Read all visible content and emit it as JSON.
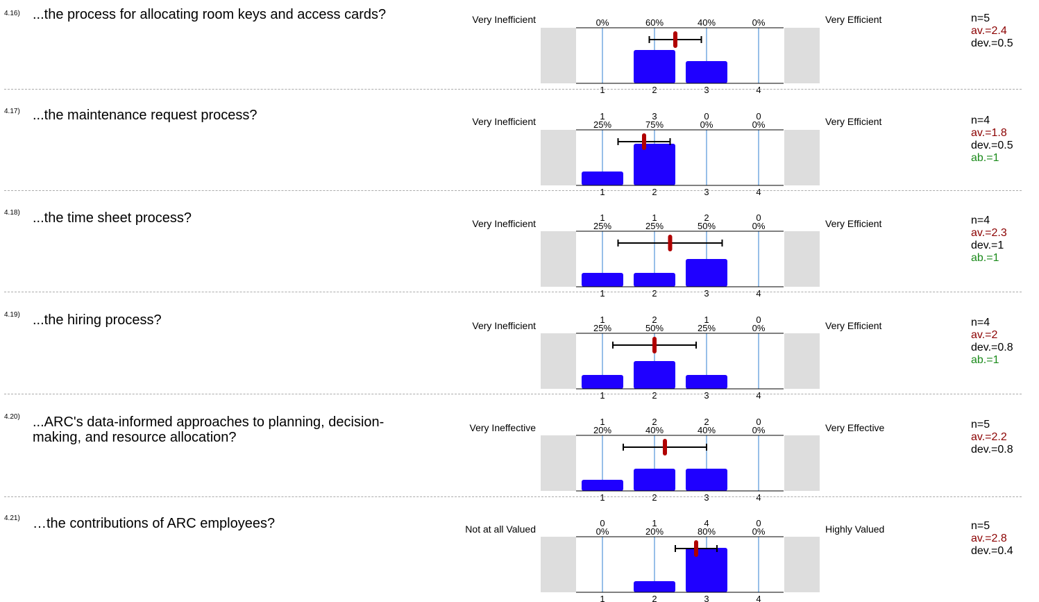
{
  "questions": [
    {
      "number": "4.16)",
      "text": "...the process for allocating room keys and access cards?",
      "left_label": "Very Inefficient",
      "right_label": "Very Efficient",
      "stats": {
        "n": "n=5",
        "av": "av.=2.4",
        "dev": "dev.=0.5",
        "ab": ""
      }
    },
    {
      "number": "4.17)",
      "text": "...the maintenance request process?",
      "left_label": "Very Inefficient",
      "right_label": "Very Efficient",
      "stats": {
        "n": "n=4",
        "av": "av.=1.8",
        "dev": "dev.=0.5",
        "ab": "ab.=1"
      }
    },
    {
      "number": "4.18)",
      "text": "...the time sheet process?",
      "left_label": "Very Inefficient",
      "right_label": "Very Efficient",
      "stats": {
        "n": "n=4",
        "av": "av.=2.3",
        "dev": "dev.=1",
        "ab": "ab.=1"
      }
    },
    {
      "number": "4.19)",
      "text": "...the hiring process?",
      "left_label": "Very Inefficient",
      "right_label": "Very Efficient",
      "stats": {
        "n": "n=4",
        "av": "av.=2",
        "dev": "dev.=0.8",
        "ab": "ab.=1"
      }
    },
    {
      "number": "4.20)",
      "text": "...ARC's data-informed approaches to planning, decision-making, and resource allocation?",
      "left_label": "Very Ineffective",
      "right_label": "Very Effective",
      "stats": {
        "n": "n=5",
        "av": "av.=2.2",
        "dev": "dev.=0.8",
        "ab": ""
      }
    },
    {
      "number": "4.21)",
      "text": "…the contributions of ARC employees?",
      "left_label": "Not at all Valued",
      "right_label": "Highly Valued",
      "stats": {
        "n": "n=5",
        "av": "av.=2.8",
        "dev": "dev.=0.4",
        "ab": ""
      }
    }
  ],
  "colors": {
    "bar": "#1f00ff",
    "mean_marker": "#b00000",
    "gridline": "#2f7fd0",
    "side_panel": "#dddddd",
    "separator": "#aaaaaa"
  },
  "chart_data": [
    {
      "type": "bar",
      "categories": [
        "1",
        "2",
        "3",
        "4"
      ],
      "counts": [
        "",
        "",
        "",
        ""
      ],
      "percent_labels": [
        "0%",
        "60%",
        "40%",
        "0%"
      ],
      "values": [
        0,
        60,
        40,
        0
      ],
      "mean": 2.4,
      "sd": 0.5,
      "ylim": [
        0,
        100
      ]
    },
    {
      "type": "bar",
      "categories": [
        "1",
        "2",
        "3",
        "4"
      ],
      "counts": [
        "1",
        "3",
        "0",
        "0"
      ],
      "percent_labels": [
        "25%",
        "75%",
        "0%",
        "0%"
      ],
      "values": [
        25,
        75,
        0,
        0
      ],
      "mean": 1.8,
      "sd": 0.5,
      "ylim": [
        0,
        100
      ]
    },
    {
      "type": "bar",
      "categories": [
        "1",
        "2",
        "3",
        "4"
      ],
      "counts": [
        "1",
        "1",
        "2",
        "0"
      ],
      "percent_labels": [
        "25%",
        "25%",
        "50%",
        "0%"
      ],
      "values": [
        25,
        25,
        50,
        0
      ],
      "mean": 2.3,
      "sd": 1,
      "ylim": [
        0,
        100
      ]
    },
    {
      "type": "bar",
      "categories": [
        "1",
        "2",
        "3",
        "4"
      ],
      "counts": [
        "1",
        "2",
        "1",
        "0"
      ],
      "percent_labels": [
        "25%",
        "50%",
        "25%",
        "0%"
      ],
      "values": [
        25,
        50,
        25,
        0
      ],
      "mean": 2,
      "sd": 0.8,
      "ylim": [
        0,
        100
      ]
    },
    {
      "type": "bar",
      "categories": [
        "1",
        "2",
        "3",
        "4"
      ],
      "counts": [
        "1",
        "2",
        "2",
        "0"
      ],
      "percent_labels": [
        "20%",
        "40%",
        "40%",
        "0%"
      ],
      "values": [
        20,
        40,
        40,
        0
      ],
      "mean": 2.2,
      "sd": 0.8,
      "ylim": [
        0,
        100
      ]
    },
    {
      "type": "bar",
      "categories": [
        "1",
        "2",
        "3",
        "4"
      ],
      "counts": [
        "0",
        "1",
        "4",
        "0"
      ],
      "percent_labels": [
        "0%",
        "20%",
        "80%",
        "0%"
      ],
      "values": [
        0,
        20,
        80,
        0
      ],
      "mean": 2.8,
      "sd": 0.4,
      "ylim": [
        0,
        100
      ]
    }
  ]
}
